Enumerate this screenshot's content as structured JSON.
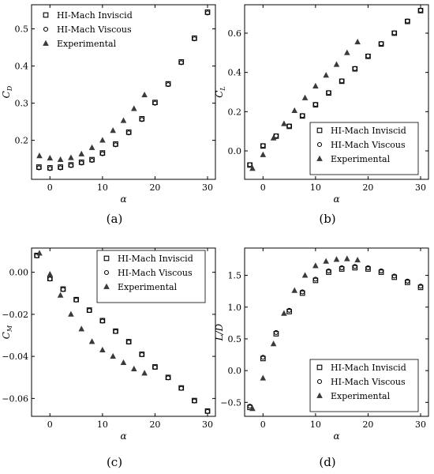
{
  "figure": {
    "panel_labels": [
      "(a)",
      "(b)",
      "(c)",
      "(d)"
    ]
  },
  "legend_labels": [
    "HI-Mach Inviscid",
    "HI-Mach Viscous",
    "Experimental"
  ],
  "chart_data": [
    {
      "type": "scatter",
      "panel": "(a)",
      "xlabel": "α",
      "ylabel_main": "C",
      "ylabel_sub": "D",
      "xlim": [
        -3.5,
        31.5
      ],
      "ylim": [
        0.095,
        0.565
      ],
      "xticks": [
        0,
        10,
        20,
        30
      ],
      "yticks": [
        0.2,
        0.3,
        0.4,
        0.5
      ],
      "ytick_labels": [
        "0.2",
        "0.3",
        "0.4",
        "0.5"
      ],
      "legend_position": "upper-left",
      "series": [
        {
          "name": "HI-Mach Inviscid",
          "marker": "square",
          "x": [
            -2.1,
            0,
            2,
            4,
            6,
            8,
            10,
            12.5,
            15,
            17.5,
            20,
            22.5,
            25,
            27.5,
            30
          ],
          "y": [
            0.128,
            0.126,
            0.128,
            0.134,
            0.141,
            0.148,
            0.166,
            0.19,
            0.222,
            0.258,
            0.302,
            0.352,
            0.411,
            0.475,
            0.545
          ]
        },
        {
          "name": "HI-Mach Viscous",
          "marker": "circle",
          "x": [
            -2.1,
            0,
            2,
            4,
            6,
            8,
            10,
            12.5,
            15,
            17.5,
            20,
            22.5,
            25,
            27.5,
            30
          ],
          "y": [
            0.126,
            0.124,
            0.126,
            0.132,
            0.139,
            0.146,
            0.164,
            0.188,
            0.22,
            0.256,
            0.3,
            0.35,
            0.409,
            0.473,
            0.543
          ]
        },
        {
          "name": "Experimental",
          "marker": "triangle",
          "x": [
            -2,
            0,
            2,
            4,
            6,
            8,
            10,
            12,
            14,
            16,
            18
          ],
          "y": [
            0.158,
            0.152,
            0.148,
            0.153,
            0.163,
            0.18,
            0.2,
            0.226,
            0.253,
            0.285,
            0.322
          ]
        }
      ]
    },
    {
      "type": "scatter",
      "panel": "(b)",
      "xlabel": "α",
      "ylabel_main": "C",
      "ylabel_sub": "L",
      "xlim": [
        -3.5,
        31.5
      ],
      "ylim": [
        -0.145,
        0.745
      ],
      "xticks": [
        0,
        10,
        20,
        30
      ],
      "yticks": [
        0.0,
        0.2,
        0.4,
        0.6
      ],
      "ytick_labels": [
        "0.0",
        "0.2",
        "0.4",
        "0.6"
      ],
      "legend_position": "lower-right",
      "series": [
        {
          "name": "HI-Mach Inviscid",
          "marker": "square",
          "x": [
            -2.5,
            0,
            2.5,
            5,
            7.5,
            10,
            12.5,
            15,
            17.5,
            20,
            22.5,
            25,
            27.5,
            30
          ],
          "y": [
            -0.072,
            0.025,
            0.075,
            0.125,
            0.178,
            0.235,
            0.295,
            0.355,
            0.418,
            0.482,
            0.545,
            0.6,
            0.66,
            0.715
          ]
        },
        {
          "name": "HI-Mach Viscous",
          "marker": "circle",
          "x": [
            -2.5,
            0,
            2.5,
            5,
            7.5,
            10,
            12.5,
            15,
            17.5,
            20,
            22.5,
            25,
            27.5,
            30
          ],
          "y": [
            -0.07,
            0.027,
            0.077,
            0.127,
            0.18,
            0.237,
            0.297,
            0.357,
            0.42,
            0.484,
            0.547,
            0.602,
            0.662,
            0.717
          ]
        },
        {
          "name": "Experimental",
          "marker": "triangle",
          "x": [
            -2,
            0,
            2,
            4,
            6,
            8,
            10,
            12,
            14,
            16,
            18
          ],
          "y": [
            -0.09,
            -0.02,
            0.065,
            0.138,
            0.205,
            0.27,
            0.33,
            0.385,
            0.44,
            0.5,
            0.555
          ]
        }
      ]
    },
    {
      "type": "scatter",
      "panel": "(c)",
      "xlabel": "α",
      "ylabel_main": "C",
      "ylabel_sub": "M",
      "xlim": [
        -3.5,
        31.5
      ],
      "ylim": [
        -0.0685,
        0.0115
      ],
      "xticks": [
        0,
        10,
        20,
        30
      ],
      "yticks": [
        0.0,
        -0.02,
        -0.04,
        -0.06
      ],
      "ytick_labels": [
        "0.00",
        "−0.02",
        "−0.04",
        "−0.06"
      ],
      "legend_position": "upper-right",
      "series": [
        {
          "name": "HI-Mach Inviscid",
          "marker": "square",
          "x": [
            -2.5,
            0,
            2.5,
            5,
            7.5,
            10,
            12.5,
            15,
            17.5,
            20,
            22.5,
            25,
            27.5,
            30
          ],
          "y": [
            0.008,
            -0.003,
            -0.008,
            -0.013,
            -0.018,
            -0.023,
            -0.028,
            -0.033,
            -0.039,
            -0.045,
            -0.05,
            -0.055,
            -0.061,
            -0.066
          ]
        },
        {
          "name": "HI-Mach Viscous",
          "marker": "circle",
          "x": [
            -2.5,
            0,
            2.5,
            5,
            7.5,
            10,
            12.5,
            15,
            17.5,
            20,
            22.5,
            25,
            27.5,
            30
          ],
          "y": [
            0.0078,
            -0.0032,
            -0.0082,
            -0.0132,
            -0.0182,
            -0.0232,
            -0.0282,
            -0.0332,
            -0.0392,
            -0.0452,
            -0.0502,
            -0.0552,
            -0.0612,
            -0.0662
          ]
        },
        {
          "name": "Experimental",
          "marker": "triangle",
          "x": [
            -2,
            0,
            2,
            4,
            6,
            8,
            10,
            12,
            14,
            16,
            18
          ],
          "y": [
            0.009,
            -0.001,
            -0.011,
            -0.02,
            -0.027,
            -0.033,
            -0.037,
            -0.04,
            -0.043,
            -0.046,
            -0.048
          ]
        }
      ]
    },
    {
      "type": "scatter",
      "panel": "(d)",
      "xlabel": "α",
      "ylabel_main": "L/D",
      "ylabel_sub": "",
      "xlim": [
        -3.5,
        31.5
      ],
      "ylim": [
        -0.72,
        1.93
      ],
      "xticks": [
        0,
        10,
        20,
        30
      ],
      "yticks": [
        -0.5,
        0.0,
        0.5,
        1.0,
        1.5
      ],
      "ytick_labels": [
        "−0.5",
        "0.0",
        "0.5",
        "1.0",
        "1.5"
      ],
      "legend_position": "lower-right",
      "series": [
        {
          "name": "HI-Mach Inviscid",
          "marker": "square",
          "x": [
            -2.5,
            0,
            2.5,
            5,
            7.5,
            10,
            12.5,
            15,
            17.5,
            20,
            22.5,
            25,
            27.5,
            30
          ],
          "y": [
            -0.58,
            0.19,
            0.58,
            0.93,
            1.22,
            1.42,
            1.55,
            1.6,
            1.62,
            1.6,
            1.55,
            1.47,
            1.39,
            1.31
          ]
        },
        {
          "name": "HI-Mach Viscous",
          "marker": "circle",
          "x": [
            -2.5,
            0,
            2.5,
            5,
            7.5,
            10,
            12.5,
            15,
            17.5,
            20,
            22.5,
            25,
            27.5,
            30
          ],
          "y": [
            -0.56,
            0.21,
            0.6,
            0.95,
            1.24,
            1.44,
            1.57,
            1.62,
            1.64,
            1.62,
            1.57,
            1.49,
            1.41,
            1.33
          ]
        },
        {
          "name": "Experimental",
          "marker": "triangle",
          "x": [
            -2,
            0,
            2,
            4,
            6,
            8,
            10,
            12,
            14,
            16,
            18
          ],
          "y": [
            -0.6,
            -0.12,
            0.42,
            0.9,
            1.26,
            1.5,
            1.65,
            1.72,
            1.75,
            1.76,
            1.74
          ]
        }
      ]
    }
  ]
}
